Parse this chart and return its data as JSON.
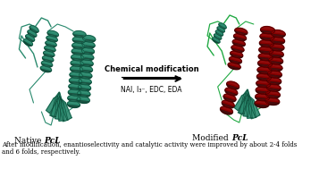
{
  "background_color": "#ffffff",
  "arrow_text_top": "Chemical modification",
  "arrow_text_bottom": "NAI, I₃⁻, EDC, EDA",
  "label_left": "Native ",
  "label_left_italic": "PcL",
  "label_right": "Modified ",
  "label_right_italic": "PcL",
  "caption_line1": "After modification, enantioselectivity and catalytic activity were improved by about 2-4 folds",
  "caption_line2": "and 6 folds, respectively.",
  "teal_main": "#2a8a6e",
  "teal_dark": "#0d4a38",
  "teal_light": "#3daa88",
  "red_main": "#8b0000",
  "red_dark": "#3d0000",
  "red_light": "#cc2222",
  "green_bright": "#22aa44",
  "fig_width": 3.76,
  "fig_height": 1.89,
  "dpi": 100
}
